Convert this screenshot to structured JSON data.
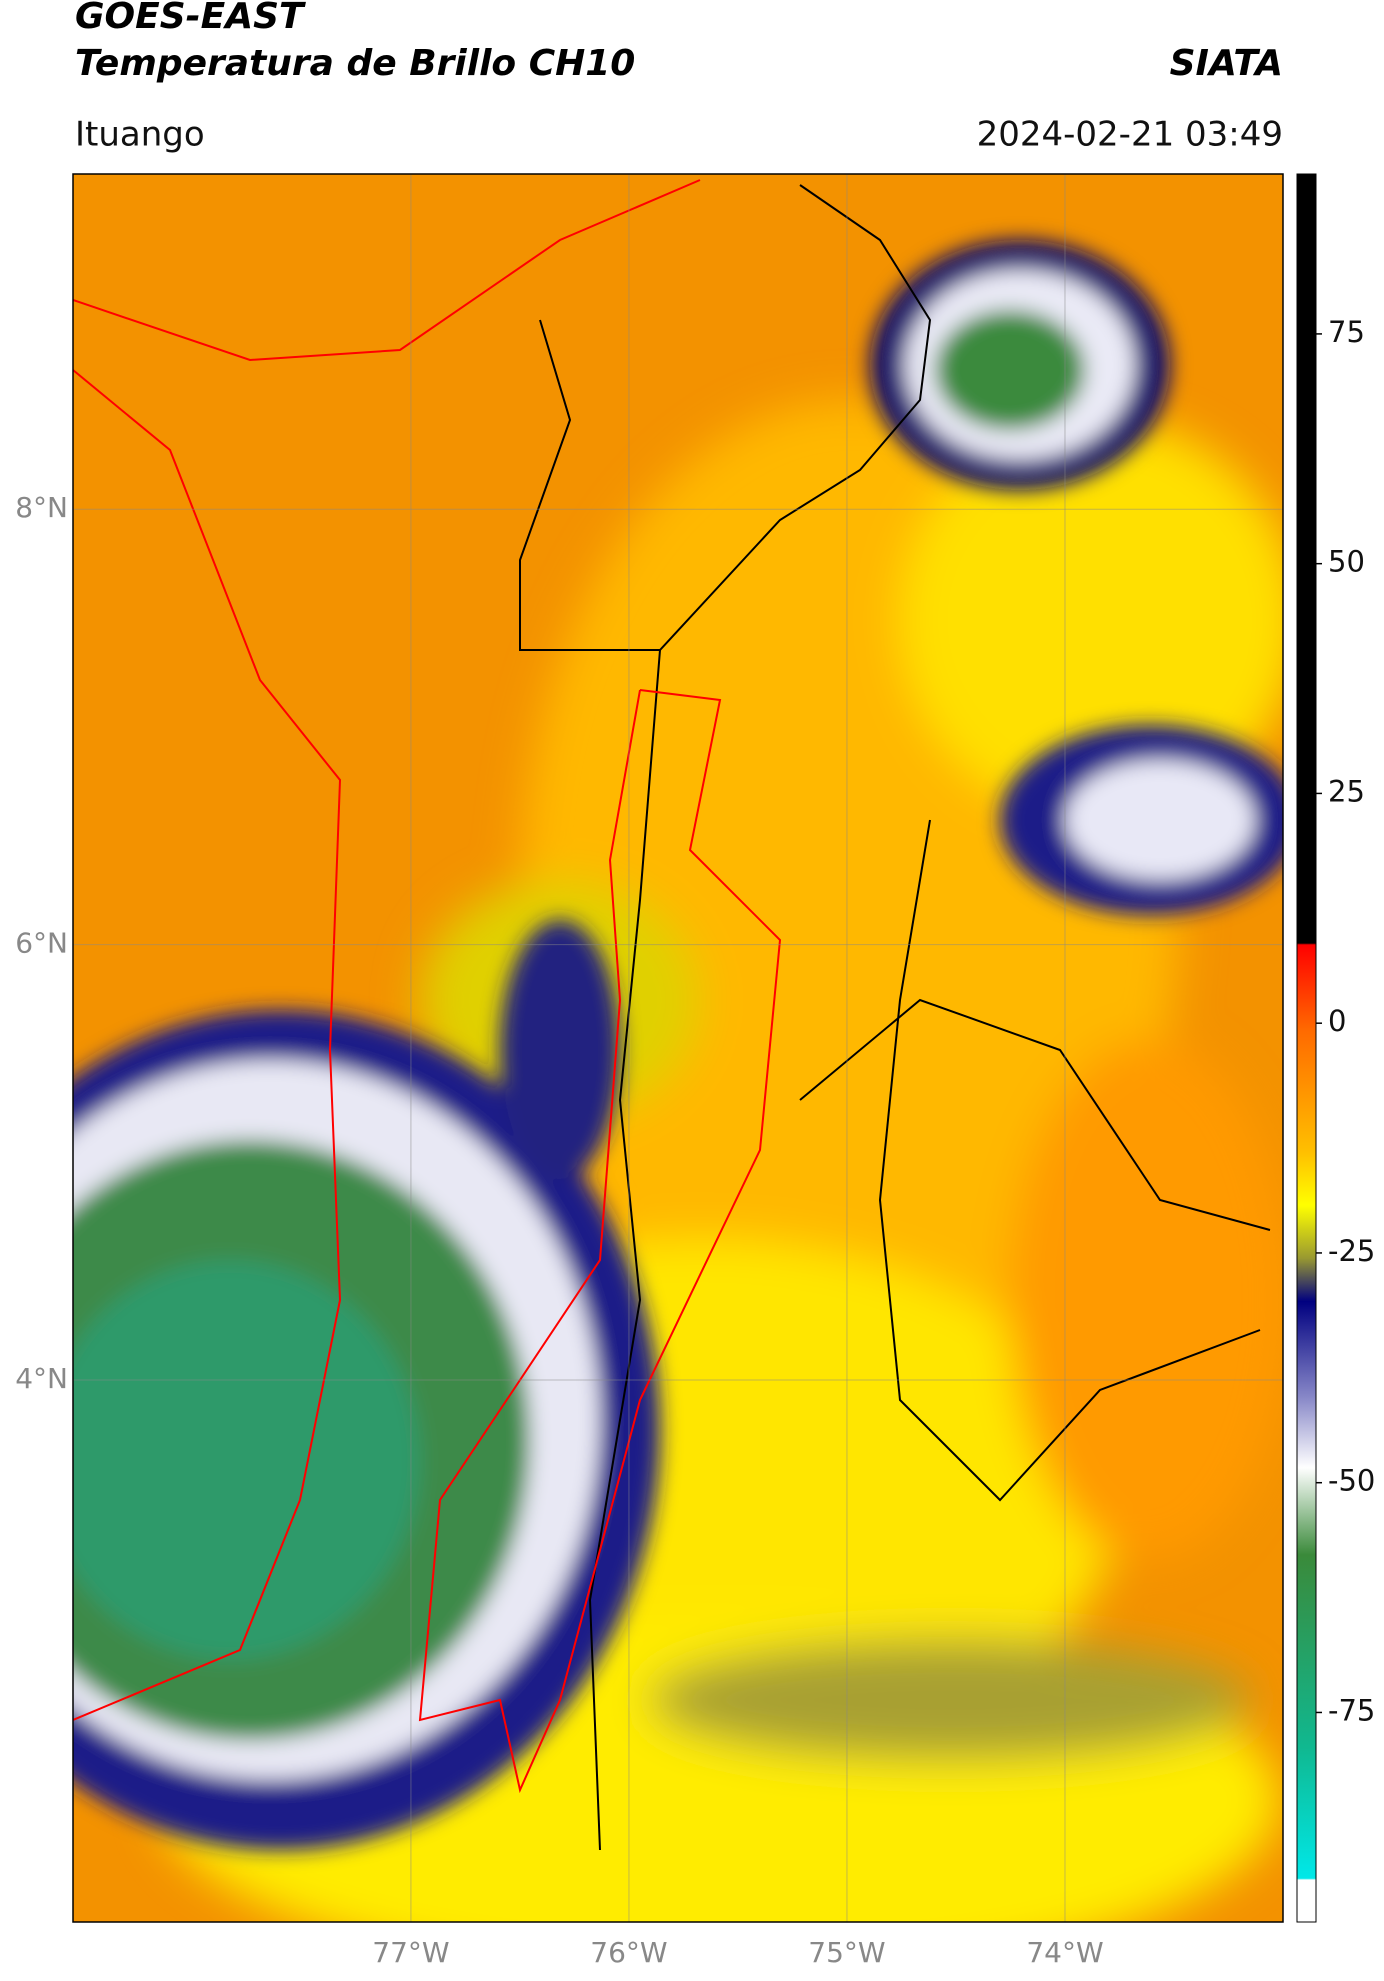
{
  "header": {
    "title": "GOES-EAST",
    "subtitle": "Temperatura de Brillo CH10",
    "source": "SIATA",
    "location": "Ituango",
    "timestamp": "2024-02-21 03:49"
  },
  "map": {
    "xlim": [
      -78.55,
      -73.0
    ],
    "ylim": [
      1.51,
      9.54
    ],
    "xticks": [
      {
        "value": -77,
        "label": "77°W"
      },
      {
        "value": -76,
        "label": "76°W"
      },
      {
        "value": -75,
        "label": "75°W"
      },
      {
        "value": -74,
        "label": "74°W"
      }
    ],
    "yticks": [
      {
        "value": 8,
        "label": "8°N"
      },
      {
        "value": 6,
        "label": "6°N"
      },
      {
        "value": 4,
        "label": "4°N"
      }
    ],
    "grid": true
  },
  "colorbar": {
    "clim": [
      -97.8,
      92.4
    ],
    "ticks": [
      75,
      50,
      25,
      0,
      -25,
      -50,
      -75
    ]
  }
}
